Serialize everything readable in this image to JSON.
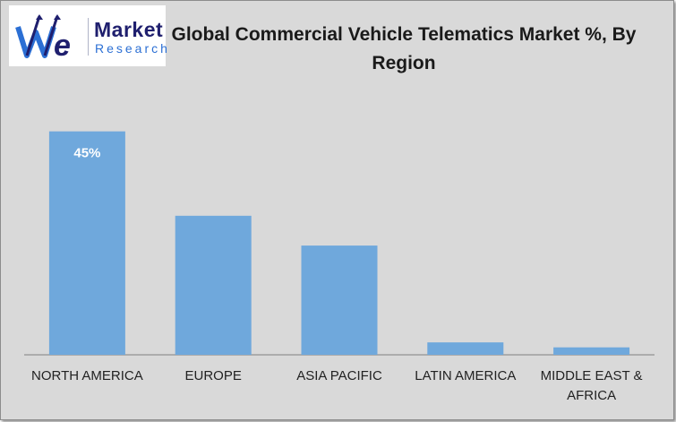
{
  "logo": {
    "mark_text": "We",
    "word_line1": "Market",
    "word_line2": "Research"
  },
  "chart_data": {
    "type": "bar",
    "title": "Global Commercial Vehicle Telematics Market %, By Region",
    "categories": [
      "NORTH AMERICA",
      "EUROPE",
      "ASIA PACIFIC",
      "LATIN AMERICA",
      "MIDDLE EAST & AFRICA"
    ],
    "values": [
      45,
      28,
      22,
      2.5,
      1.5
    ],
    "data_labels": [
      "45%",
      "",
      "",
      "",
      ""
    ],
    "ylim": [
      0,
      48
    ],
    "grid": false,
    "legend": "none",
    "colors": {
      "bar": "#6fa8dc",
      "background": "#d9d9d9",
      "axis": "#7f7f7f",
      "data_label": "#ffffff"
    }
  }
}
